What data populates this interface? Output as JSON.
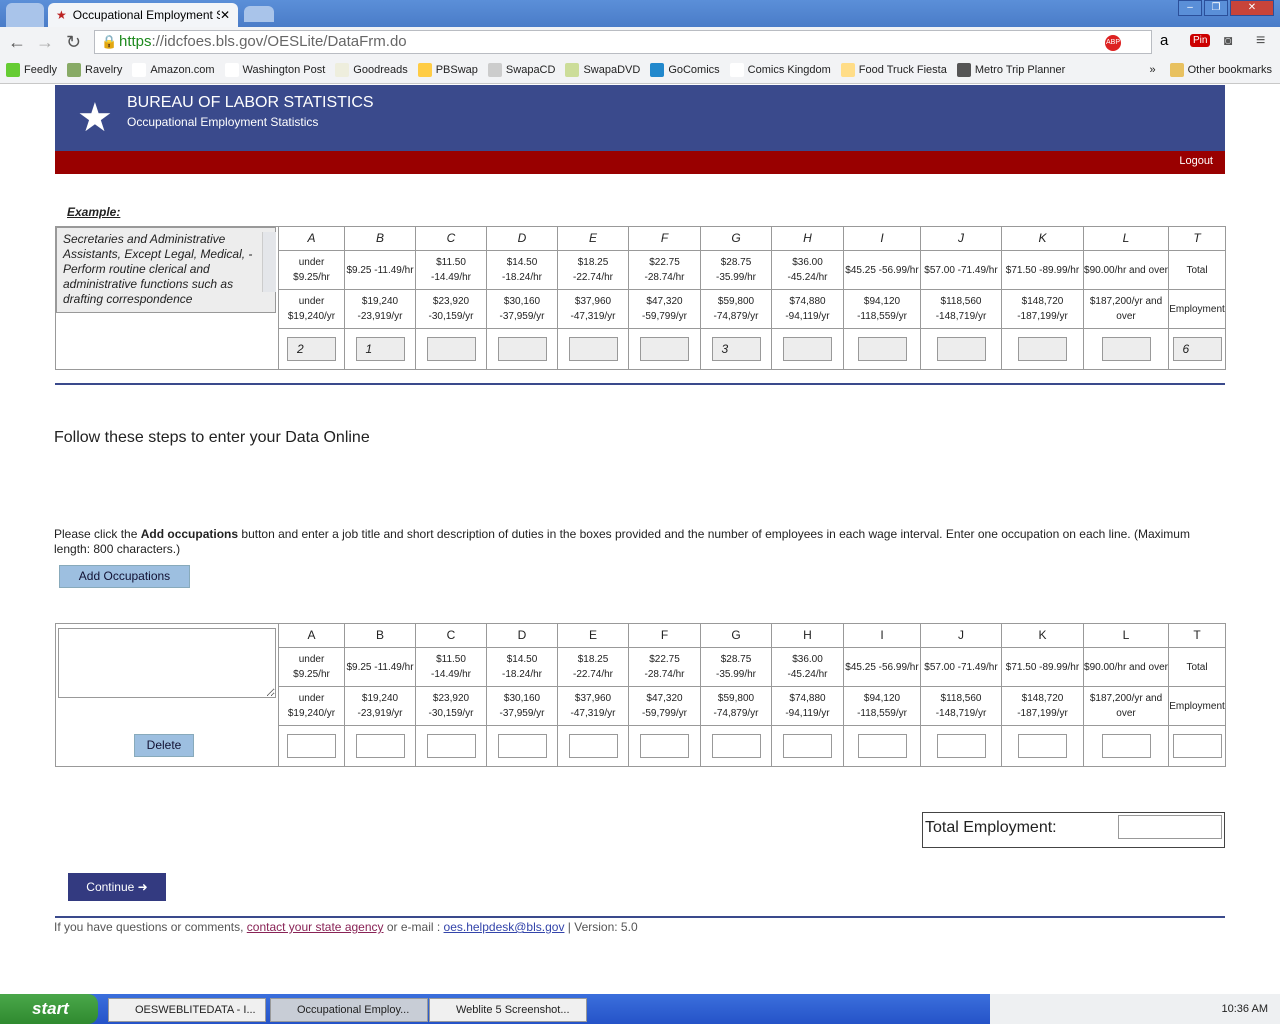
{
  "browser": {
    "active_tab_title": "Occupational Employment St",
    "url_scheme": "https",
    "url_rest": "://idcfoes.bls.gov/OESLite/DataFrm.do",
    "bookmarks": [
      "Feedly",
      "Ravelry",
      "Amazon.com",
      "Washington Post",
      "Goodreads",
      "PBSwap",
      "SwapaCD",
      "SwapaDVD",
      "GoComics",
      "Comics Kingdom",
      "Food Truck Fiesta",
      "Metro Trip Planner"
    ],
    "more_bookmarks": "»",
    "other_bookmarks": "Other bookmarks"
  },
  "header": {
    "title": "BUREAU OF LABOR STATISTICS",
    "subtitle": "Occupational Employment Statistics",
    "logout": "Logout",
    "brand_color": "#3a4a8c",
    "bar_color": "#990000"
  },
  "example": {
    "label": "Example:",
    "description": "Secretaries and Administrative Assistants, Except Legal, Medical, -\nPerform routine clerical and administrative functions such as drafting correspondence",
    "values": [
      "2",
      "1",
      "",
      "",
      "",
      "",
      "3",
      "",
      "",
      "",
      "",
      "",
      "6"
    ]
  },
  "columns": [
    {
      "letter": "A",
      "hourly": "under $9.25/hr",
      "annual": "under $19,240/yr"
    },
    {
      "letter": "B",
      "hourly": "$9.25 -11.49/hr",
      "annual": "$19,240 -23,919/yr"
    },
    {
      "letter": "C",
      "hourly": "$11.50 -14.49/hr",
      "annual": "$23,920 -30,159/yr"
    },
    {
      "letter": "D",
      "hourly": "$14.50 -18.24/hr",
      "annual": "$30,160 -37,959/yr"
    },
    {
      "letter": "E",
      "hourly": "$18.25 -22.74/hr",
      "annual": "$37,960 -47,319/yr"
    },
    {
      "letter": "F",
      "hourly": "$22.75 -28.74/hr",
      "annual": "$47,320 -59,799/yr"
    },
    {
      "letter": "G",
      "hourly": "$28.75 -35.99/hr",
      "annual": "$59,800 -74,879/yr"
    },
    {
      "letter": "H",
      "hourly": "$36.00 -45.24/hr",
      "annual": "$74,880 -94,119/yr"
    },
    {
      "letter": "I",
      "hourly": "$45.25 -56.99/hr",
      "annual": "$94,120 -118,559/yr"
    },
    {
      "letter": "J",
      "hourly": "$57.00 -71.49/hr",
      "annual": "$118,560 -148,719/yr"
    },
    {
      "letter": "K",
      "hourly": "$71.50 -89.99/hr",
      "annual": "$148,720 -187,199/yr"
    },
    {
      "letter": "L",
      "hourly": "$90.00/hr and over",
      "annual": "$187,200/yr and over"
    },
    {
      "letter": "T",
      "hourly": "Total",
      "annual": "Employment"
    }
  ],
  "steps": {
    "title": "Follow these steps to enter your Data Online",
    "instr_pre": "Please click the ",
    "instr_bold": "Add occupations",
    "instr_post": " button and enter a job title and short description of duties in the boxes provided and the number of employees in each wage interval. Enter one occupation on each line. (Maximum length: 800 characters.)",
    "add_button": "Add Occupations",
    "delete_button": "Delete"
  },
  "total": {
    "label": "Total Employment:",
    "value": ""
  },
  "continue_button": "Continue ➜",
  "footer": {
    "pre": "If you have questions or comments, ",
    "link1": "contact your state agency",
    "mid": " or e-mail : ",
    "link2": "oes.helpdesk@bls.gov",
    "post": " | Version: 5.0"
  },
  "taskbar": {
    "start": "start",
    "tasks": [
      "OESWEBLITEDATA - I...",
      "Occupational Employ...",
      "Weblite 5 Screenshot..."
    ],
    "clock": "10:36 AM"
  }
}
